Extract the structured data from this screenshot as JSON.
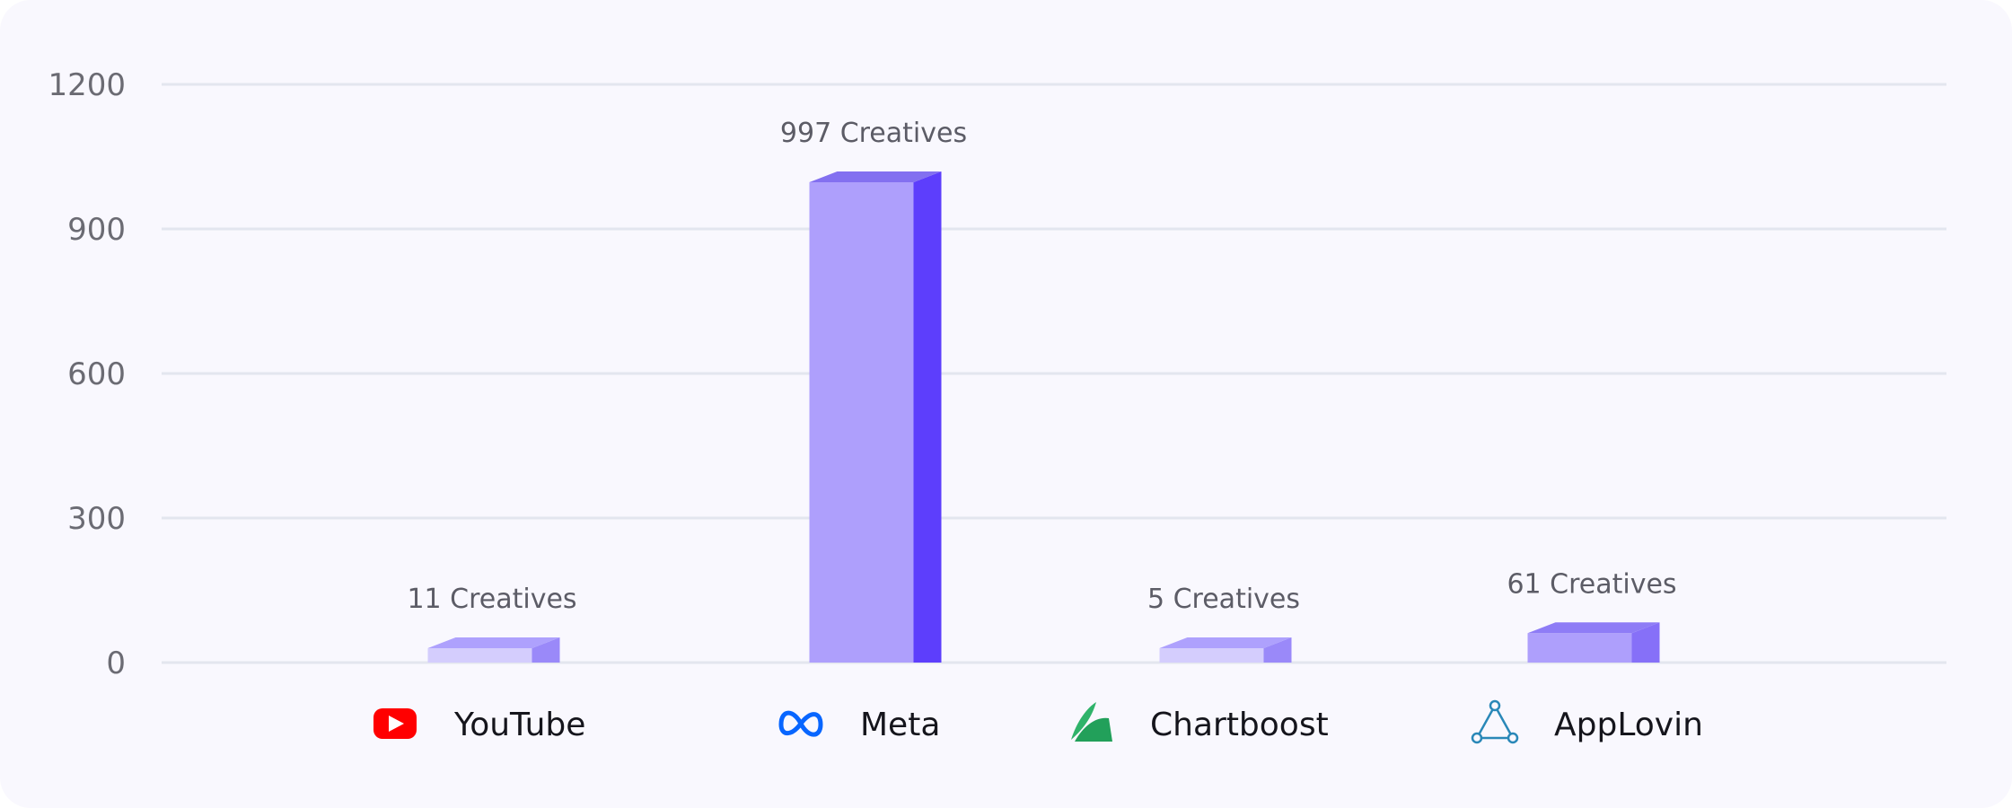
{
  "chart_data": {
    "type": "bar",
    "title": "",
    "xlabel": "",
    "ylabel": "",
    "ylim": [
      0,
      1200
    ],
    "yticks": [
      "0",
      "300",
      "600",
      "900",
      "1200"
    ],
    "grid": true,
    "categories": [
      "YouTube",
      "Meta",
      "Chartboost",
      "AppLovin"
    ],
    "category_icons": [
      "youtube-icon",
      "meta-icon",
      "chartboost-icon",
      "applovin-icon"
    ],
    "values": [
      11,
      997,
      5,
      61
    ],
    "value_labels": [
      "11 Creatives",
      "997 Creatives",
      "5 Creatives",
      "61 Creatives"
    ],
    "colors": {
      "low": {
        "front": "#d4cdfd",
        "top": "#aea1fd",
        "side": "#9a89f9"
      },
      "mid": {
        "front": "#ae9ffc",
        "top": "#8e7cf6",
        "side": "#8670f8"
      },
      "high": {
        "front": "#ae9ffc",
        "top": "#8370f0",
        "side": "#5d3efc"
      },
      "grid": "#e3e6ef",
      "youtube": "#ff0000",
      "meta": "#0866ff",
      "chartboost": "#22a05a",
      "applovin": "#2a88b8"
    }
  }
}
